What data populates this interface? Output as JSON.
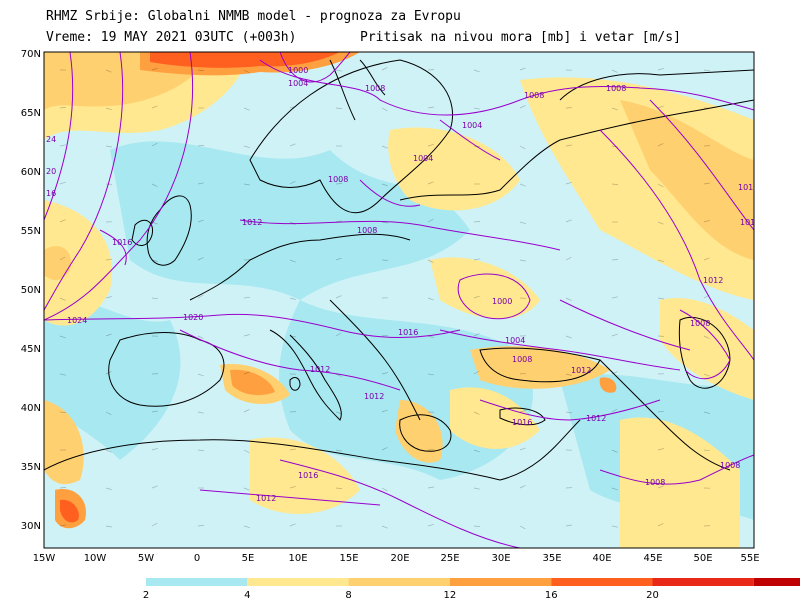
{
  "header": {
    "title": "RHMZ Srbije: Globalni NMMB model - prognoza za Evropu",
    "subtitle": "Vreme: 19 MAY 2021 03UTC (+003h)",
    "variable": "Pritisak na nivou mora [mb] i vetar [m/s]"
  },
  "axes": {
    "lat_labels": [
      "70N",
      "65N",
      "60N",
      "55N",
      "50N",
      "45N",
      "40N",
      "35N",
      "30N"
    ],
    "lon_labels": [
      "15W",
      "10W",
      "5W",
      "0",
      "5E",
      "10E",
      "15E",
      "20E",
      "25E",
      "30E",
      "35E",
      "40E",
      "45E",
      "50E",
      "55E"
    ]
  },
  "isobar_labels": [
    "1000",
    "1004",
    "1008",
    "1008",
    "1004",
    "1008",
    "1008",
    "1004",
    "1008",
    "1012",
    "1016",
    "1020",
    "1024",
    "1016",
    "1012",
    "1012",
    "1012",
    "1016",
    "1012",
    "1008",
    "1012",
    "1000",
    "1004",
    "1008",
    "1016",
    "1012",
    "1008",
    "1008",
    "24",
    "20",
    "16",
    "1012",
    "1016",
    "101",
    "101"
  ],
  "colorbar": {
    "ticks": [
      "2",
      "4",
      "8",
      "12",
      "16",
      "20"
    ],
    "colors": [
      "#a8e8f0",
      "#ffe890",
      "#ffd070",
      "#ffa040",
      "#ff6020",
      "#e82818",
      "#c00000"
    ]
  },
  "palette": {
    "sea": "#ffffff",
    "isobar": "#9900cc",
    "coast": "#000000"
  },
  "chart_data": {
    "type": "heatmap",
    "title": "Pritisak na nivou mora [mb] i vetar [m/s]",
    "x_range": [
      "15W",
      "55E"
    ],
    "y_range": [
      "28N",
      "70N"
    ],
    "color_scale_ticks": [
      2,
      4,
      8,
      12,
      16,
      20
    ]
  }
}
